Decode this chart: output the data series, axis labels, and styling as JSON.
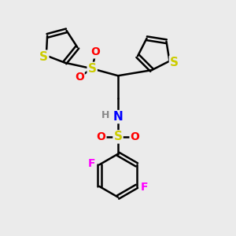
{
  "background_color": "#ebebeb",
  "bond_color": "#000000",
  "bond_width": 1.8,
  "atom_colors": {
    "S_sulfonyl": "#cccc00",
    "S_thio": "#cccc00",
    "O": "#ff0000",
    "N": "#0000ff",
    "F": "#ff00ff",
    "H": "#888888",
    "C": "#000000"
  },
  "font_size": 10,
  "fig_size": [
    3.0,
    3.0
  ],
  "dpi": 100,
  "xlim": [
    0,
    10
  ],
  "ylim": [
    0,
    10
  ]
}
